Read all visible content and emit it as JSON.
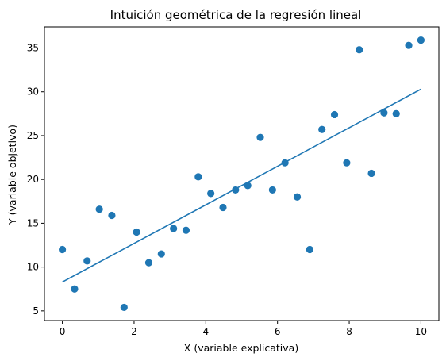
{
  "chart_data": {
    "type": "scatter",
    "title": "Intuición geométrica de la regresión lineal",
    "xlabel": "X (variable explicativa)",
    "ylabel": "Y (variable objetivo)",
    "xlim": [
      -0.5,
      10.5
    ],
    "ylim": [
      3.9,
      37.4
    ],
    "xticks": [
      0,
      2,
      4,
      6,
      8,
      10
    ],
    "yticks": [
      5,
      10,
      15,
      20,
      25,
      30,
      35
    ],
    "grid": false,
    "colors": {
      "points": "#1f77b4",
      "line": "#1f77b4"
    },
    "points": [
      {
        "x": 0.0,
        "y": 12.0
      },
      {
        "x": 0.34,
        "y": 7.5
      },
      {
        "x": 0.69,
        "y": 10.7
      },
      {
        "x": 1.03,
        "y": 16.6
      },
      {
        "x": 1.38,
        "y": 15.9
      },
      {
        "x": 1.72,
        "y": 5.4
      },
      {
        "x": 2.07,
        "y": 14.0
      },
      {
        "x": 2.41,
        "y": 10.5
      },
      {
        "x": 2.76,
        "y": 11.5
      },
      {
        "x": 3.1,
        "y": 14.4
      },
      {
        "x": 3.45,
        "y": 14.2
      },
      {
        "x": 3.79,
        "y": 20.3
      },
      {
        "x": 4.14,
        "y": 18.4
      },
      {
        "x": 4.48,
        "y": 16.8
      },
      {
        "x": 4.83,
        "y": 18.8
      },
      {
        "x": 5.17,
        "y": 19.3
      },
      {
        "x": 5.52,
        "y": 24.8
      },
      {
        "x": 5.86,
        "y": 18.8
      },
      {
        "x": 6.21,
        "y": 21.9
      },
      {
        "x": 6.55,
        "y": 18.0
      },
      {
        "x": 6.9,
        "y": 12.0
      },
      {
        "x": 7.24,
        "y": 25.7
      },
      {
        "x": 7.59,
        "y": 27.4
      },
      {
        "x": 7.93,
        "y": 21.9
      },
      {
        "x": 8.28,
        "y": 34.8
      },
      {
        "x": 8.62,
        "y": 20.7
      },
      {
        "x": 8.97,
        "y": 27.6
      },
      {
        "x": 9.31,
        "y": 27.5
      },
      {
        "x": 9.66,
        "y": 35.3
      },
      {
        "x": 10.0,
        "y": 35.9
      }
    ],
    "fit_line": {
      "x": [
        0,
        10
      ],
      "y": [
        8.3,
        30.3
      ]
    }
  }
}
